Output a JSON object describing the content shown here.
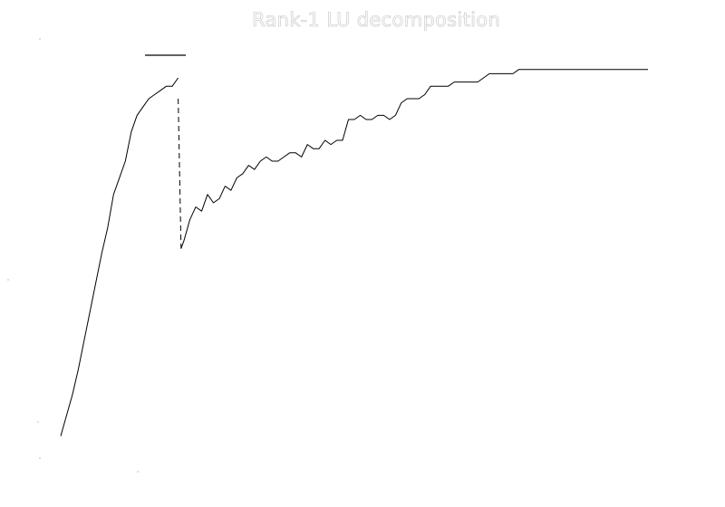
{
  "chart_data": {
    "type": "line",
    "title": "Rank-1 LU decomposition",
    "xlabel": "",
    "ylabel": "",
    "legend": "top-left",
    "grid": false,
    "axes_visible": false,
    "xlim": [
      0,
      100
    ],
    "ylim": [
      0,
      100
    ],
    "colors": {
      "line": "#000000",
      "legend_line": "#000000",
      "title": "#c4c4c4",
      "background": "#ffffff"
    },
    "series": [
      {
        "x": [
          0,
          1,
          2,
          3,
          4,
          5,
          6,
          7,
          8,
          9,
          10,
          11,
          12,
          13,
          14,
          15,
          16,
          17,
          18,
          19,
          20
        ],
        "values": [
          4,
          9,
          14,
          20,
          27,
          34,
          41,
          48,
          54,
          62,
          66,
          70,
          77,
          81,
          83,
          85,
          86,
          87,
          88,
          88,
          90
        ]
      },
      {
        "x": [
          20,
          20.5
        ],
        "values": [
          85,
          49
        ],
        "style": "dashed"
      },
      {
        "x": [
          20.5,
          21,
          22,
          23,
          24,
          25,
          26,
          27,
          28,
          29,
          30,
          31,
          32,
          33,
          34,
          35,
          36,
          37,
          38,
          39,
          40,
          41,
          42,
          43,
          44,
          45,
          46,
          47,
          48,
          49,
          50,
          51,
          52,
          53,
          54,
          55,
          56,
          57,
          58,
          59,
          60,
          61,
          62,
          63,
          64,
          65,
          66,
          67,
          68,
          69,
          70,
          71,
          72,
          73,
          74,
          75,
          76,
          77,
          78,
          79,
          80,
          81,
          82,
          83,
          84,
          85,
          86,
          87,
          88,
          89,
          90,
          91,
          92,
          93,
          94,
          95,
          96,
          97,
          98,
          99,
          100
        ],
        "values": [
          49,
          51,
          56,
          59,
          58,
          62,
          60,
          61,
          64,
          63,
          66,
          67,
          69,
          68,
          70,
          71,
          70,
          70,
          71,
          72,
          72,
          71,
          74,
          73,
          73,
          75,
          74,
          75,
          75,
          80,
          80,
          81,
          80,
          80,
          81,
          81,
          80,
          81,
          84,
          85,
          85,
          85,
          86,
          88,
          88,
          88,
          88,
          89,
          89,
          89,
          89,
          89,
          90,
          91,
          91,
          91,
          91,
          91,
          92,
          92,
          92,
          92,
          92,
          92,
          92,
          92,
          92,
          92,
          92,
          92,
          92,
          92,
          92,
          92,
          92,
          92,
          92,
          92,
          92,
          92,
          92
        ],
        "style": "solid"
      }
    ]
  }
}
